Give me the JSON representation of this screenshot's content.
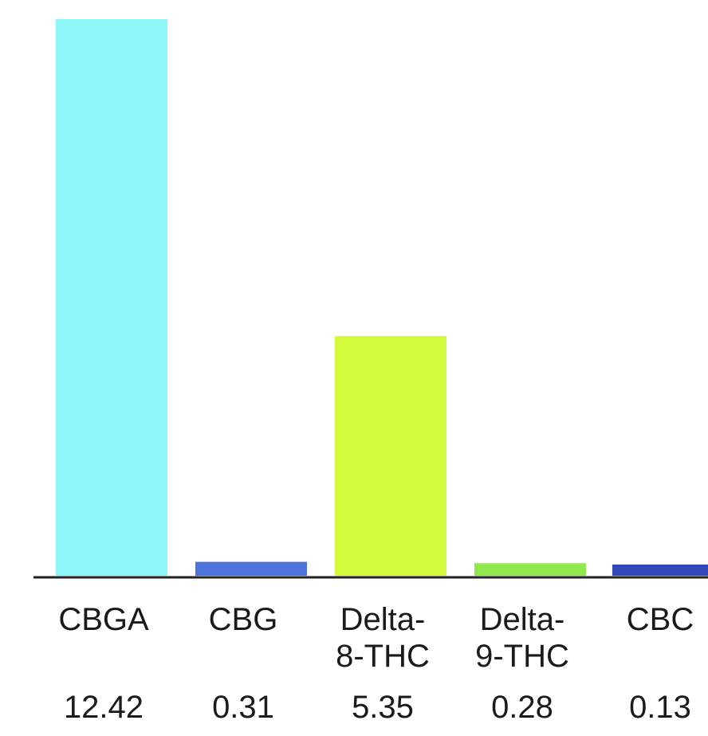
{
  "chart_data": {
    "type": "bar",
    "title": "",
    "xlabel": "",
    "ylabel": "",
    "categories": [
      [
        "CBGA"
      ],
      [
        "CBG"
      ],
      [
        "Delta-",
        "8-THC"
      ],
      [
        "Delta-",
        "9-THC"
      ],
      [
        "CBC"
      ]
    ],
    "values": [
      12.42,
      0.31,
      5.35,
      0.28,
      0.13
    ],
    "value_labels": [
      "12.42",
      "0.31",
      "5.35",
      "0.28",
      "0.13"
    ],
    "colors": [
      "#8ef6f8",
      "#4d74dd",
      "#d4fa3c",
      "#8ee84e",
      "#3347b8"
    ],
    "ylim": [
      0,
      12.42
    ],
    "grid": false,
    "legend": "none"
  }
}
